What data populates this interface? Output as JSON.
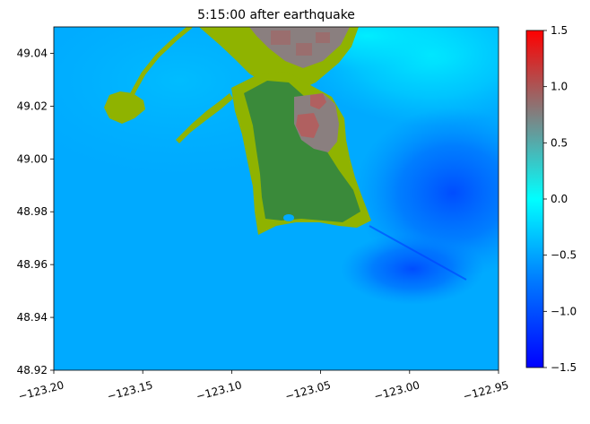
{
  "chart_data": {
    "type": "heatmap",
    "title": "5:15:00 after earthquake",
    "xlabel": "",
    "ylabel": "",
    "xlim": [
      -123.2,
      -122.95
    ],
    "ylim": [
      48.92,
      49.05
    ],
    "x_ticks": [
      -123.2,
      -123.15,
      -123.1,
      -123.05,
      -123.0,
      -122.95
    ],
    "x_tick_labels": [
      "−123.20",
      "−123.15",
      "−123.10",
      "−123.05",
      "−123.00",
      "−122.95"
    ],
    "y_ticks": [
      48.92,
      48.94,
      48.96,
      48.98,
      49.0,
      49.02,
      49.04
    ],
    "y_tick_labels": [
      "48.92",
      "48.94",
      "48.96",
      "48.98",
      "49.00",
      "49.02",
      "49.04"
    ],
    "colorbar": {
      "range": [
        -1.5,
        1.5
      ],
      "ticks": [
        -1.5,
        -1.0,
        -0.5,
        0.0,
        0.5,
        1.0,
        1.5
      ],
      "tick_labels": [
        "−1.5",
        "−1.0",
        "−0.5",
        "0.0",
        "0.5",
        "1.0",
        "1.5"
      ],
      "colors": [
        "#0000ff",
        "#0077ff",
        "#00ffff",
        "#808080",
        "#ff0000"
      ]
    },
    "grid": false,
    "colors": {
      "water": "#00aaff",
      "water_deep": "#0066ff",
      "water_high": "#00ffff",
      "land_low": "#8fb300",
      "land_green": "#3a8a3a",
      "urban_gray": "#8a7f7f",
      "urban_red": "#b06060"
    }
  }
}
